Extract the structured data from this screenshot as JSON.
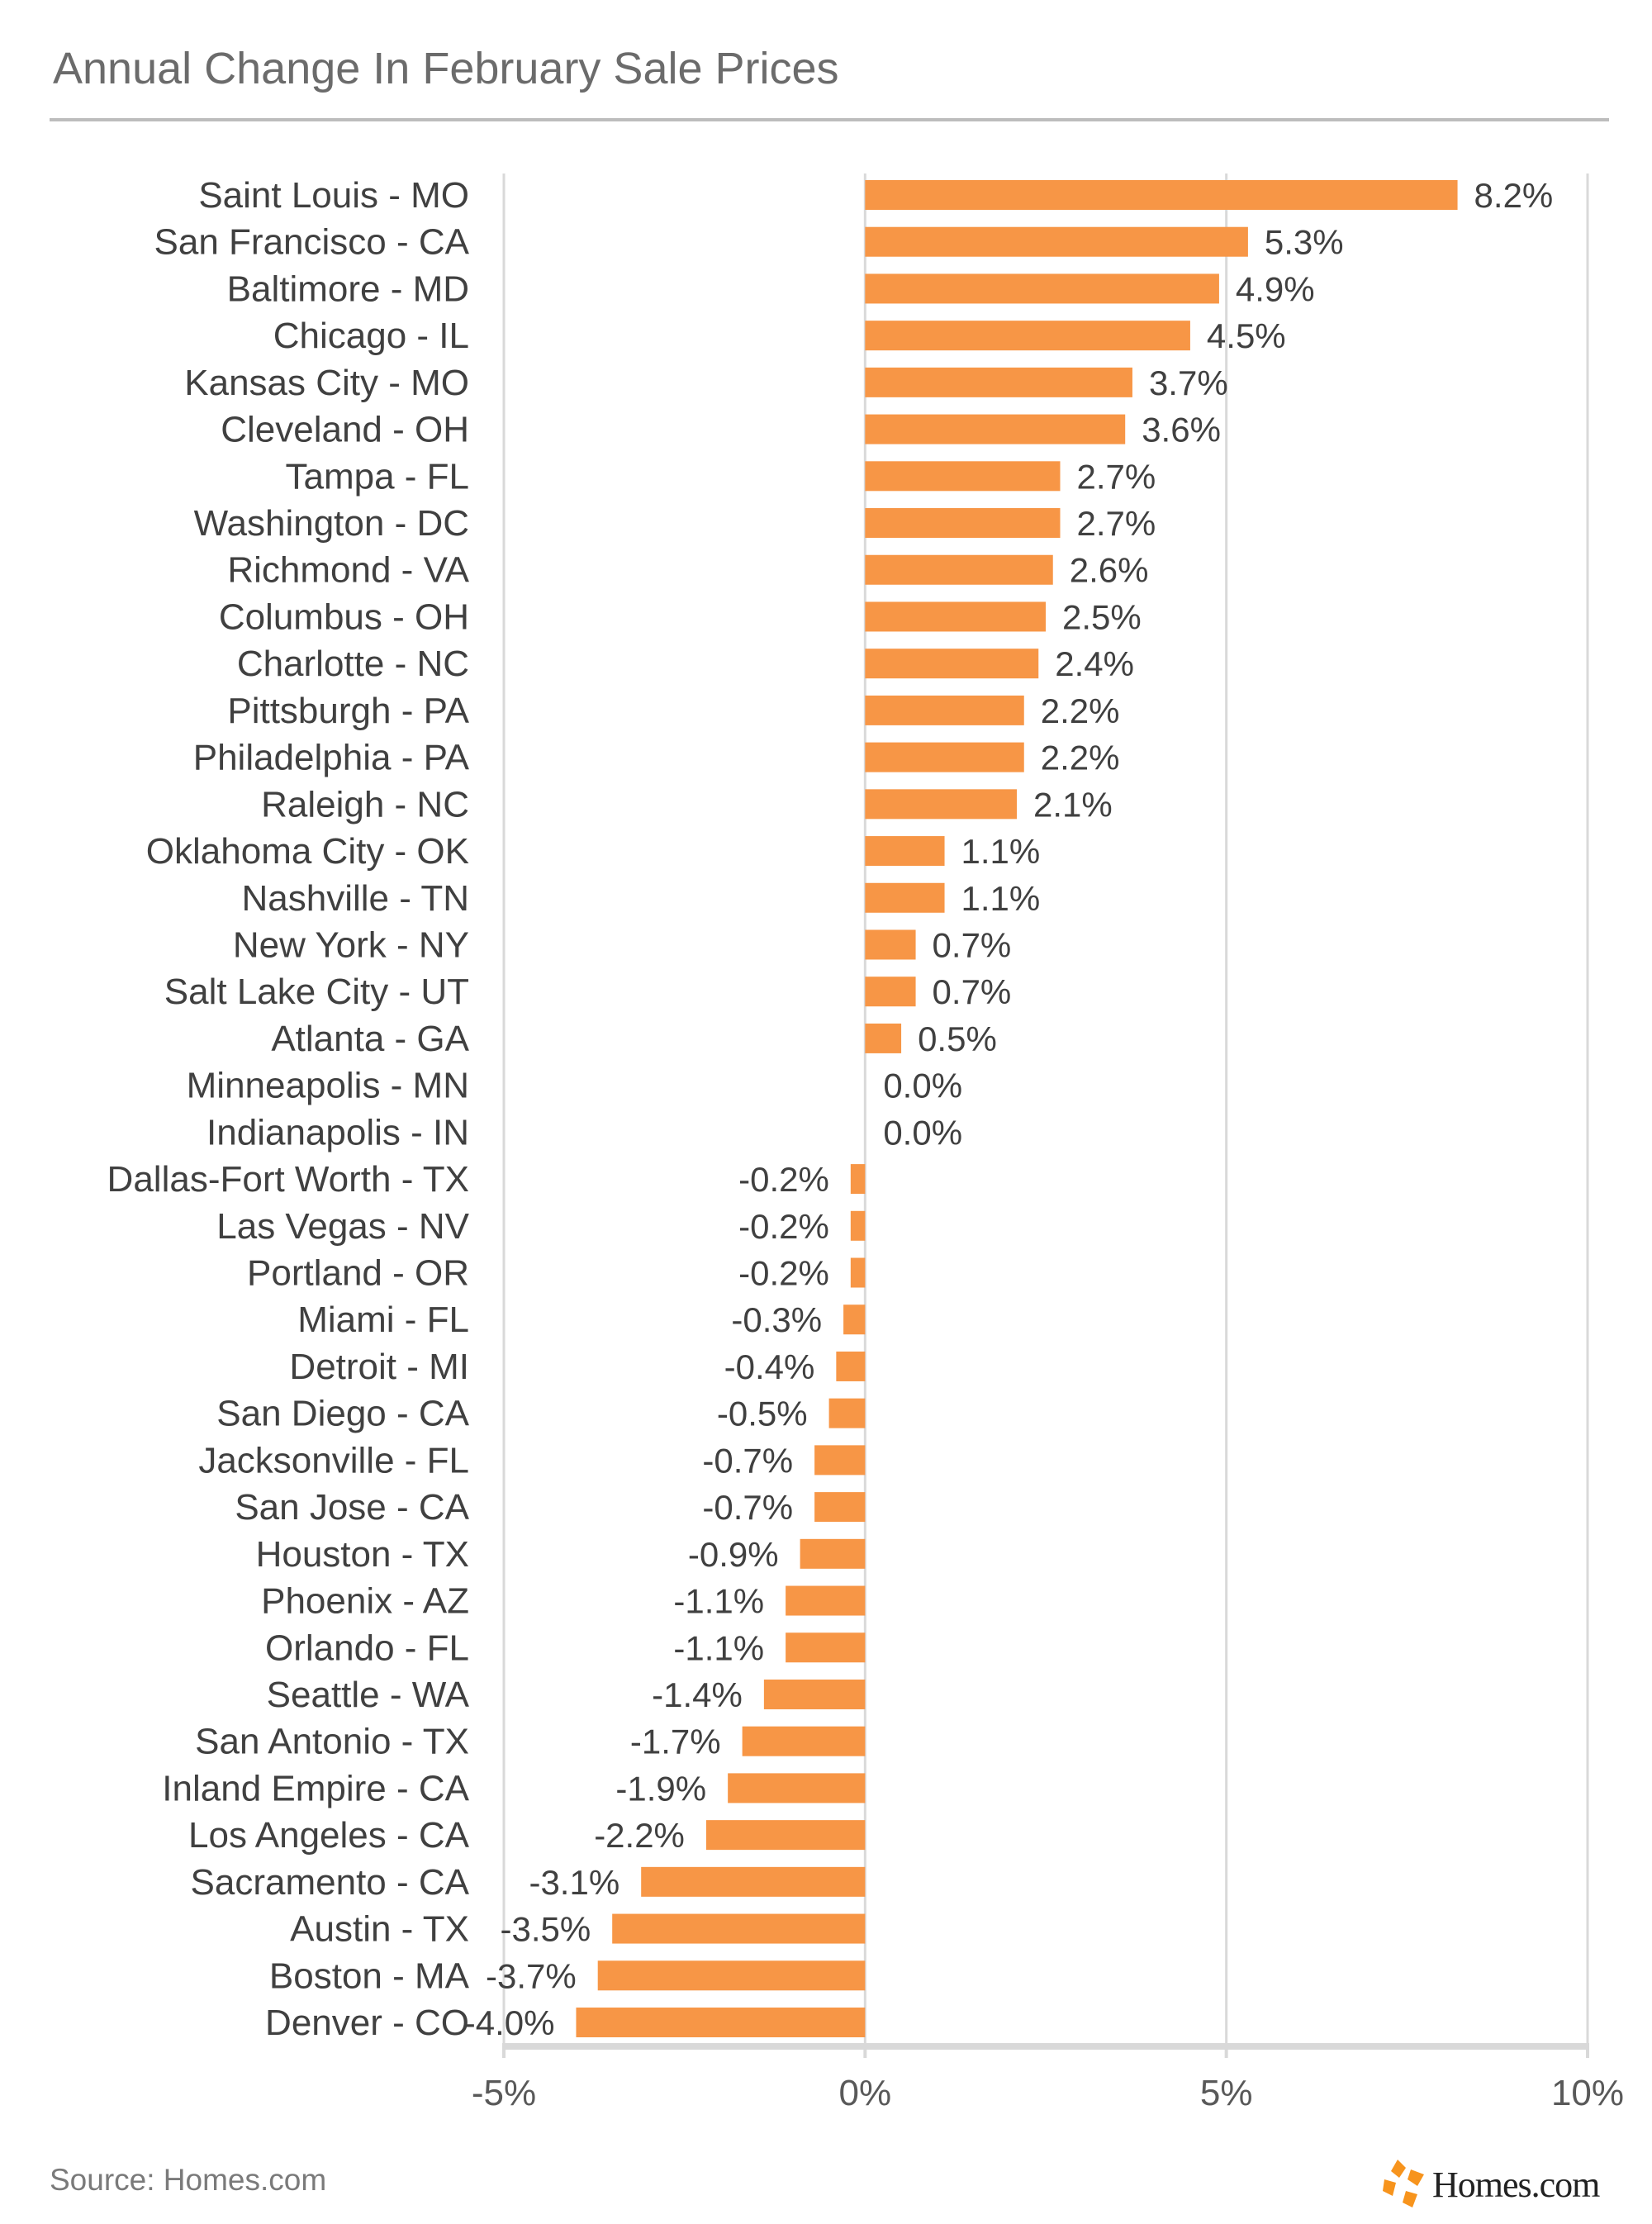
{
  "chart_data": {
    "type": "bar",
    "orientation": "horizontal",
    "title": "Annual Change In February Sale Prices",
    "xlabel": "",
    "ylabel": "",
    "xlim": [
      -5,
      10
    ],
    "xticks": [
      -5,
      0,
      5,
      10
    ],
    "xtick_labels": [
      "-5%",
      "0%",
      "5%",
      "10%"
    ],
    "grid": true,
    "bar_color": "#F79646",
    "categories": [
      "Saint Louis - MO",
      "San Francisco - CA",
      "Baltimore - MD",
      "Chicago - IL",
      "Kansas City - MO",
      "Cleveland - OH",
      "Tampa - FL",
      "Washington - DC",
      "Richmond - VA",
      "Columbus - OH",
      "Charlotte - NC",
      "Pittsburgh - PA",
      "Philadelphia - PA",
      "Raleigh - NC",
      "Oklahoma City - OK",
      "Nashville - TN",
      "New York - NY",
      "Salt Lake City - UT",
      "Atlanta - GA",
      "Minneapolis - MN",
      "Indianapolis - IN",
      "Dallas-Fort Worth - TX",
      "Las Vegas - NV",
      "Portland - OR",
      "Miami - FL",
      "Detroit - MI",
      "San Diego - CA",
      "Jacksonville - FL",
      "San Jose - CA",
      "Houston - TX",
      "Phoenix - AZ",
      "Orlando - FL",
      "Seattle - WA",
      "San Antonio - TX",
      "Inland Empire - CA",
      "Los Angeles - CA",
      "Sacramento - CA",
      "Austin - TX",
      "Boston - MA",
      "Denver - CO"
    ],
    "values": [
      8.2,
      5.3,
      4.9,
      4.5,
      3.7,
      3.6,
      2.7,
      2.7,
      2.6,
      2.5,
      2.4,
      2.2,
      2.2,
      2.1,
      1.1,
      1.1,
      0.7,
      0.7,
      0.5,
      0.0,
      0.0,
      -0.2,
      -0.2,
      -0.2,
      -0.3,
      -0.4,
      -0.5,
      -0.7,
      -0.7,
      -0.9,
      -1.1,
      -1.1,
      -1.4,
      -1.7,
      -1.9,
      -2.2,
      -3.1,
      -3.5,
      -3.7,
      -4.0
    ],
    "data_labels": [
      "8.2%",
      "5.3%",
      "4.9%",
      "4.5%",
      "3.7%",
      "3.6%",
      "2.7%",
      "2.7%",
      "2.6%",
      "2.5%",
      "2.4%",
      "2.2%",
      "2.2%",
      "2.1%",
      "1.1%",
      "1.1%",
      "0.7%",
      "0.7%",
      "0.5%",
      "0.0%",
      "0.0%",
      "-0.2%",
      "-0.2%",
      "-0.2%",
      "-0.3%",
      "-0.4%",
      "-0.5%",
      "-0.7%",
      "-0.7%",
      "-0.9%",
      "-1.1%",
      "-1.1%",
      "-1.4%",
      "-1.7%",
      "-1.9%",
      "-2.2%",
      "-3.1%",
      "-3.5%",
      "-3.7%",
      "-4.0%"
    ]
  },
  "footer": {
    "source": "Source: Homes.com",
    "logo_text": "Homes.com"
  }
}
